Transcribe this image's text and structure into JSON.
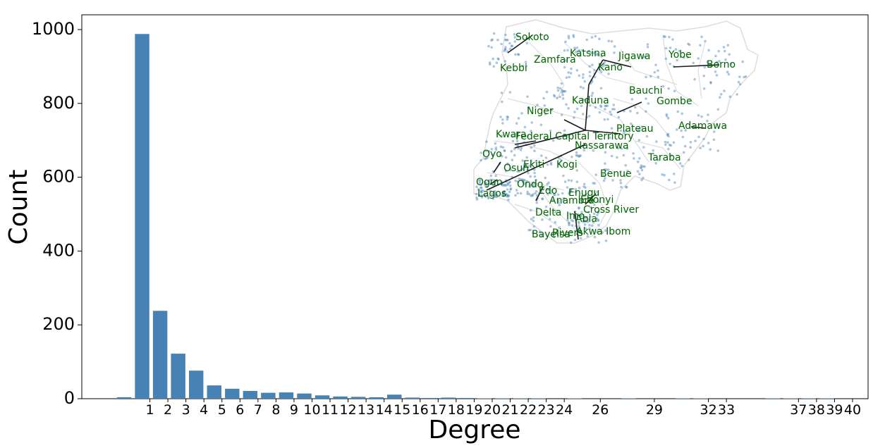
{
  "chart_data": {
    "type": "bar",
    "xlabel": "Degree",
    "ylabel": "Count",
    "ylim": [
      0,
      1040
    ],
    "yticks": [
      0,
      200,
      400,
      600,
      800,
      1000
    ],
    "bar_color": "#4682b4",
    "xticks": [
      1,
      2,
      3,
      4,
      5,
      6,
      7,
      8,
      9,
      10,
      11,
      12,
      13,
      14,
      15,
      16,
      17,
      18,
      19,
      20,
      21,
      22,
      23,
      24,
      26,
      29,
      32,
      33,
      37,
      38,
      39,
      40
    ],
    "bars": [
      {
        "x": 0,
        "y": 4
      },
      {
        "x": 1,
        "y": 988
      },
      {
        "x": 2,
        "y": 238
      },
      {
        "x": 3,
        "y": 122
      },
      {
        "x": 4,
        "y": 76
      },
      {
        "x": 5,
        "y": 36
      },
      {
        "x": 6,
        "y": 27
      },
      {
        "x": 7,
        "y": 21
      },
      {
        "x": 8,
        "y": 16
      },
      {
        "x": 9,
        "y": 17
      },
      {
        "x": 10,
        "y": 14
      },
      {
        "x": 11,
        "y": 9
      },
      {
        "x": 12,
        "y": 6
      },
      {
        "x": 13,
        "y": 5
      },
      {
        "x": 14,
        "y": 4
      },
      {
        "x": 15,
        "y": 11
      },
      {
        "x": 16,
        "y": 3
      },
      {
        "x": 17,
        "y": 2
      },
      {
        "x": 18,
        "y": 3
      },
      {
        "x": 19,
        "y": 2
      },
      {
        "x": 20,
        "y": 1
      },
      {
        "x": 21,
        "y": 1
      },
      {
        "x": 22,
        "y": 1
      },
      {
        "x": 23,
        "y": 1
      },
      {
        "x": 25,
        "y": 1
      },
      {
        "x": 28,
        "y": 1
      },
      {
        "x": 31,
        "y": 1
      },
      {
        "x": 32,
        "y": 1
      },
      {
        "x": 36,
        "y": 1
      },
      {
        "x": 37,
        "y": 1
      },
      {
        "x": 38,
        "y": 1
      },
      {
        "x": 39,
        "y": 1
      }
    ],
    "inset_map": {
      "state_labels": [
        "Sokoto",
        "Katsina",
        "Jigawa",
        "Yobe",
        "Borno",
        "Zamfara",
        "Kebbi",
        "Kano",
        "Bauchi",
        "Kaduna",
        "Gombe",
        "Niger",
        "Plateau",
        "Adamawa",
        "Kwara",
        "Federal Capital Territory",
        "Nassarawa",
        "Oyo",
        "Taraba",
        "Osun",
        "Ekiti",
        "Kogi",
        "Benue",
        "Ogun",
        "Ondo",
        "Lagos",
        "Edo",
        "Enugu",
        "Anambra",
        "Ebonyi",
        "Cross River",
        "Delta",
        "Imo",
        "Abia",
        "Bayelsa",
        "Rivers",
        "Akwa Ibom"
      ],
      "label_color": "#006400",
      "node_color": "#4682b4",
      "edge_color": "#1a1a1a",
      "boundary_color": "#dddddd"
    }
  }
}
